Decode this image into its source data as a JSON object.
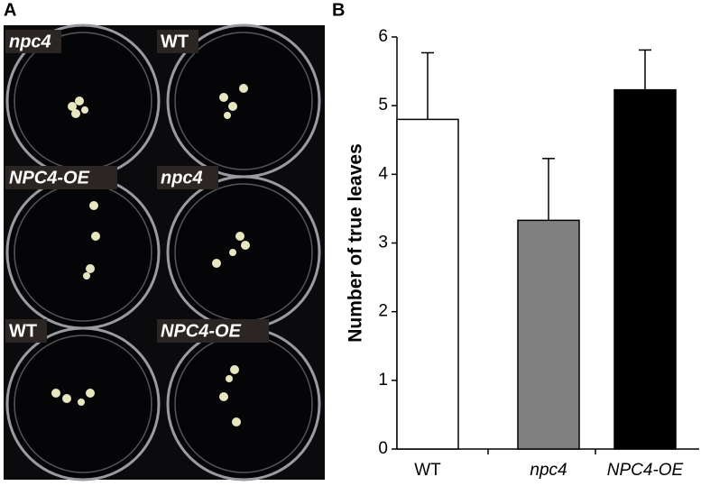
{
  "photo": {
    "panel_label": "A",
    "labels": [
      "npc4",
      "WT",
      "NPC4-OE",
      "npc4",
      "WT",
      "NPC4-OE"
    ]
  },
  "chart_data": {
    "type": "bar",
    "panel_label": "B",
    "ylabel": "Number of true leaves",
    "categories": [
      "WT",
      "npc4",
      "NPC4-OE"
    ],
    "values": [
      4.8,
      3.33,
      5.23
    ],
    "errors": [
      0.97,
      0.9,
      0.58
    ],
    "colors": [
      "#ffffff",
      "#808080",
      "#000000"
    ],
    "ylim": [
      0,
      6
    ],
    "yticks": [
      0,
      1,
      2,
      3,
      4,
      5,
      6
    ],
    "grid": false
  }
}
